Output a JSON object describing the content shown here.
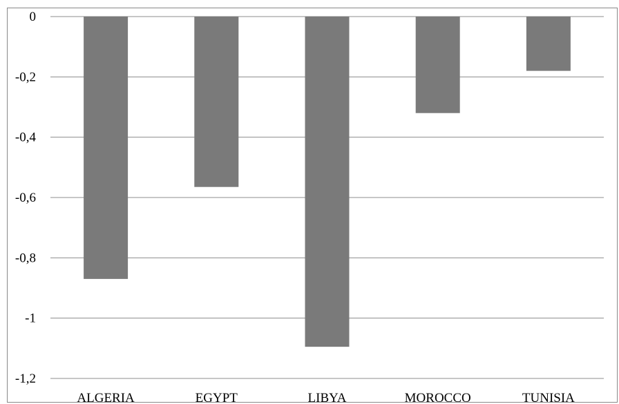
{
  "chart_data": {
    "type": "bar",
    "title": "",
    "xlabel": "",
    "ylabel": "",
    "categories": [
      "ALGERIA",
      "EGYPT",
      "LIBYA",
      "MOROCCO",
      "TUNISIA"
    ],
    "values": [
      -0.87,
      -0.565,
      -1.095,
      -0.32,
      -0.18
    ],
    "ylim": [
      -1.2,
      0
    ],
    "yticks": [
      0,
      -0.2,
      -0.4,
      -0.6,
      -0.8,
      -1,
      -1.2
    ],
    "ytick_labels": [
      "0",
      "-0,2",
      "-0,4",
      "-0,6",
      "-0,8",
      "-1",
      "-1,2"
    ],
    "grid": true,
    "legend": "none",
    "bar_color": "#7a7a7a",
    "grid_color": "#8c8c8c"
  }
}
